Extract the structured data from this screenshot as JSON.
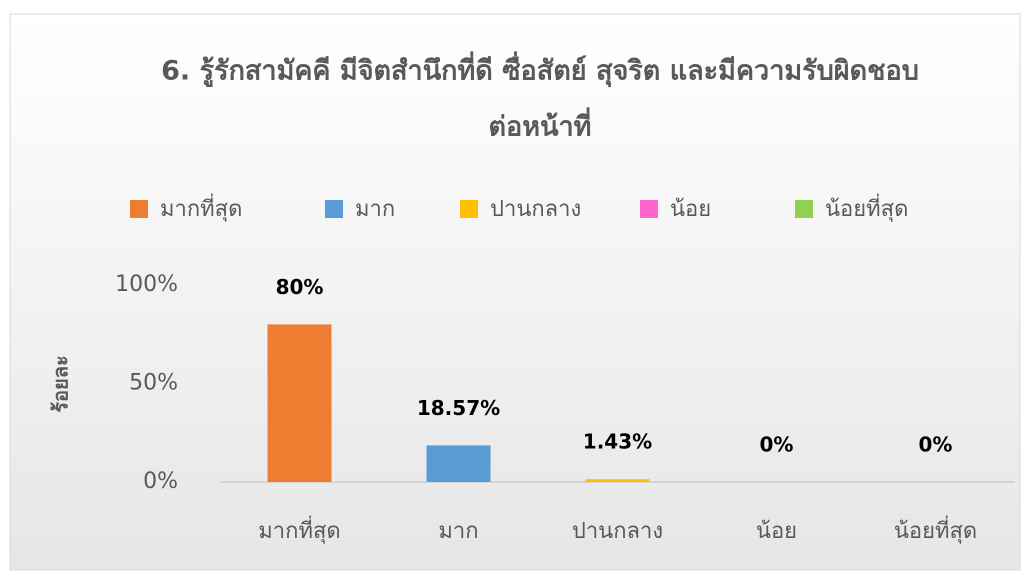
{
  "chart_data": {
    "type": "bar",
    "title": [
      "6. รู้รักสามัคคี มีจิตสำนึกที่ดี ซื่อสัตย์ สุจริต และมีความรับผิดชอบ",
      "ต่อหน้าที่"
    ],
    "y_label": "ร้อยละ",
    "categories": [
      "มากที่สุด",
      "มาก",
      "ปานกลาง",
      "น้อย",
      "น้อยที่สุด"
    ],
    "values": [
      80,
      18.57,
      1.43,
      0,
      0
    ],
    "value_labels": [
      "80%",
      "18.57%",
      "1.43%",
      "0%",
      "0%"
    ],
    "colors": [
      "#ed7d31",
      "#5b9bd5",
      "#ffc000",
      "#ff66cc",
      "#92d050"
    ],
    "ylim": [
      0,
      100
    ],
    "yticks": [
      {
        "value": 0,
        "label": "0%"
      },
      {
        "value": 50,
        "label": "50%"
      },
      {
        "value": 100,
        "label": "100%"
      }
    ],
    "grid": false,
    "legend": "top"
  }
}
